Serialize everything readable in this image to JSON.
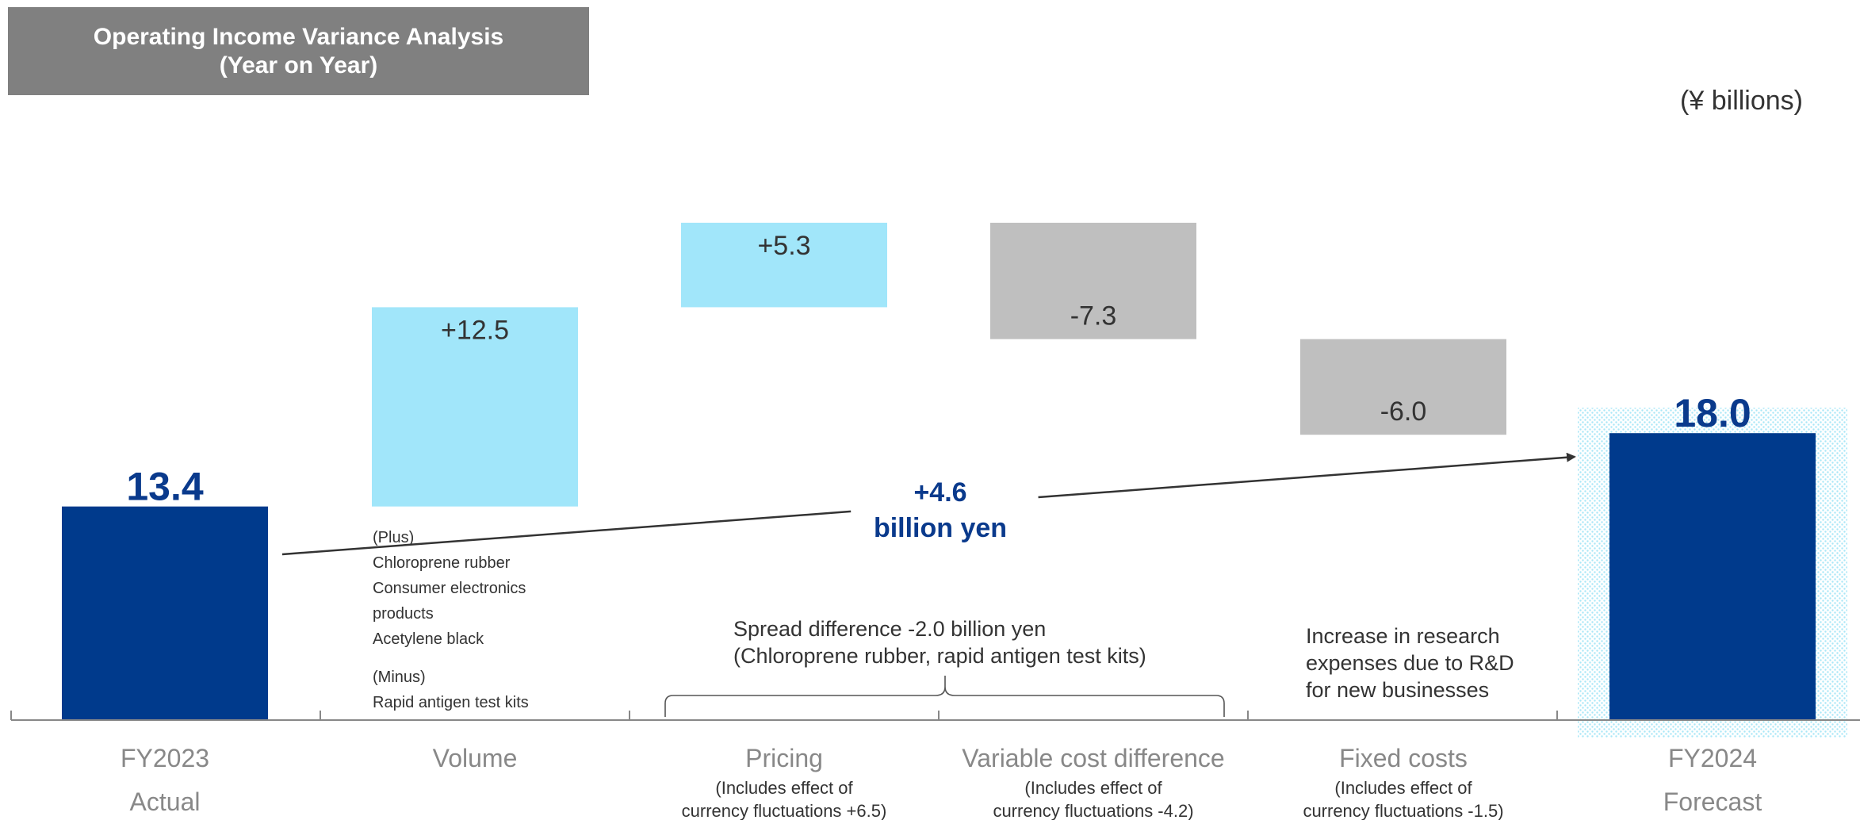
{
  "title": {
    "line1": "Operating Income Variance Analysis",
    "line2": "(Year on Year)"
  },
  "unit_label": "(¥ billions)",
  "chart_data": {
    "type": "bar",
    "subtype": "waterfall",
    "categories": [
      "FY2023 Actual",
      "Volume",
      "Pricing",
      "Variable cost difference",
      "Fixed costs",
      "FY2024 Forecast"
    ],
    "values": [
      13.4,
      12.5,
      5.3,
      -7.3,
      -6.0,
      18.0
    ],
    "value_labels": [
      "13.4",
      "+12.5",
      "+5.3",
      "-7.3",
      "-6.0",
      "18.0"
    ],
    "category_labels": [
      {
        "line1": "FY2023",
        "line2": "Actual",
        "sub1": "",
        "sub2": ""
      },
      {
        "line1": "Volume",
        "line2": "",
        "sub1": "",
        "sub2": ""
      },
      {
        "line1": "Pricing",
        "line2": "",
        "sub1": "(Includes effect of",
        "sub2": "currency fluctuations +6.5)"
      },
      {
        "line1": "Variable cost difference",
        "line2": "",
        "sub1": "(Includes effect of",
        "sub2": "currency fluctuations -4.2)"
      },
      {
        "line1": "Fixed costs",
        "line2": "",
        "sub1": "(Includes effect of",
        "sub2": "currency fluctuations -1.5)"
      },
      {
        "line1": "FY2024",
        "line2": "Forecast",
        "sub1": "",
        "sub2": ""
      }
    ],
    "change_annotation": {
      "line1": "+4.6",
      "line2": "billion yen"
    },
    "colors": {
      "total": "#003A8C",
      "increase": "#A1E6FA",
      "decrease": "#BFBFBF",
      "total_label": "#0A3A8C",
      "axis_label": "#888888",
      "forecast_highlight": "#D5F3FC"
    },
    "ylim": [
      0,
      35
    ]
  },
  "notes": {
    "volume": {
      "plus_heading": "(Plus)",
      "plus_items": [
        "Chloroprene rubber",
        "Consumer electronics",
        "products",
        "Acetylene black"
      ],
      "minus_heading": "(Minus)",
      "minus_items": [
        "Rapid antigen test kits"
      ]
    },
    "spread": {
      "line1": "Spread difference -2.0 billion yen",
      "line2": "(Chloroprene rubber, rapid antigen test kits)"
    },
    "fixed": {
      "line1": "Increase in research",
      "line2": "expenses due to R&D",
      "line3": "for new businesses"
    }
  }
}
